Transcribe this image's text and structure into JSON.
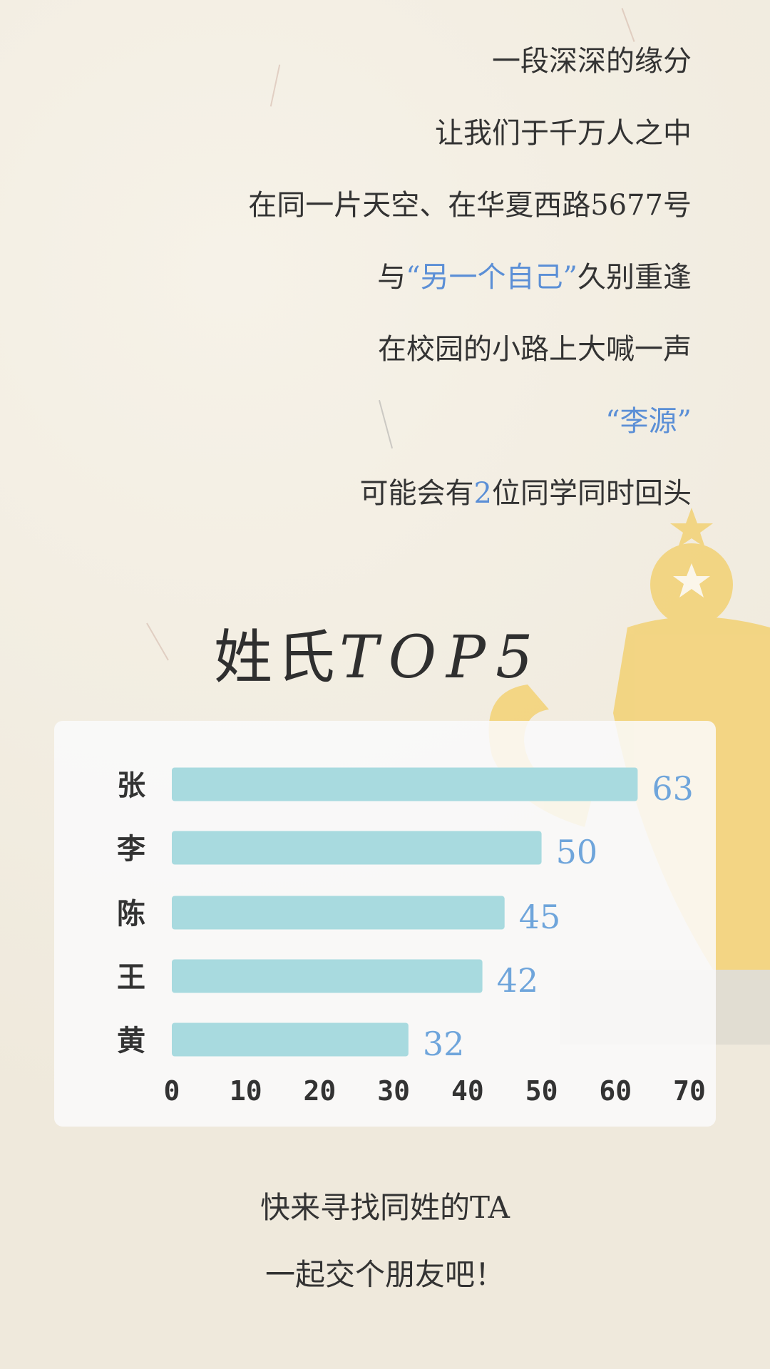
{
  "poem": {
    "lines": [
      [
        {
          "t": "一段深深的缘分"
        }
      ],
      [
        {
          "t": "让我们于千万人之中"
        }
      ],
      [
        {
          "t": "在同一片天空、在华夏西路5677号"
        }
      ],
      [
        {
          "t": "与"
        },
        {
          "t": "“另一个自己”",
          "hl": true
        },
        {
          "t": "久别重逢"
        }
      ],
      [
        {
          "t": "在校园的小路上大喊一声"
        }
      ],
      [
        {
          "t": "“李源”",
          "hl": true
        }
      ],
      [
        {
          "t": "可能会有"
        },
        {
          "t": "2",
          "hl": true
        },
        {
          "t": "位同学同时回头"
        }
      ]
    ]
  },
  "title": {
    "cn": "姓氏",
    "en": "TOP5"
  },
  "chart_data": {
    "type": "bar",
    "orientation": "horizontal",
    "categories": [
      "张",
      "李",
      "陈",
      "王",
      "黄"
    ],
    "values": [
      63,
      50,
      45,
      42,
      32
    ],
    "xlim": [
      0,
      70
    ],
    "xticks": [
      "0",
      "10",
      "20",
      "30",
      "40",
      "50",
      "60",
      "70"
    ],
    "grid": false,
    "bar_color": "#a8dadf",
    "label_color": "#6fa5db"
  },
  "footer": {
    "line1": "快来寻找同姓的TA",
    "line2": "一起交个朋友吧！"
  },
  "colors": {
    "highlight": "#5b8fd6",
    "trophy": "#f3d37a",
    "text": "#333333"
  }
}
